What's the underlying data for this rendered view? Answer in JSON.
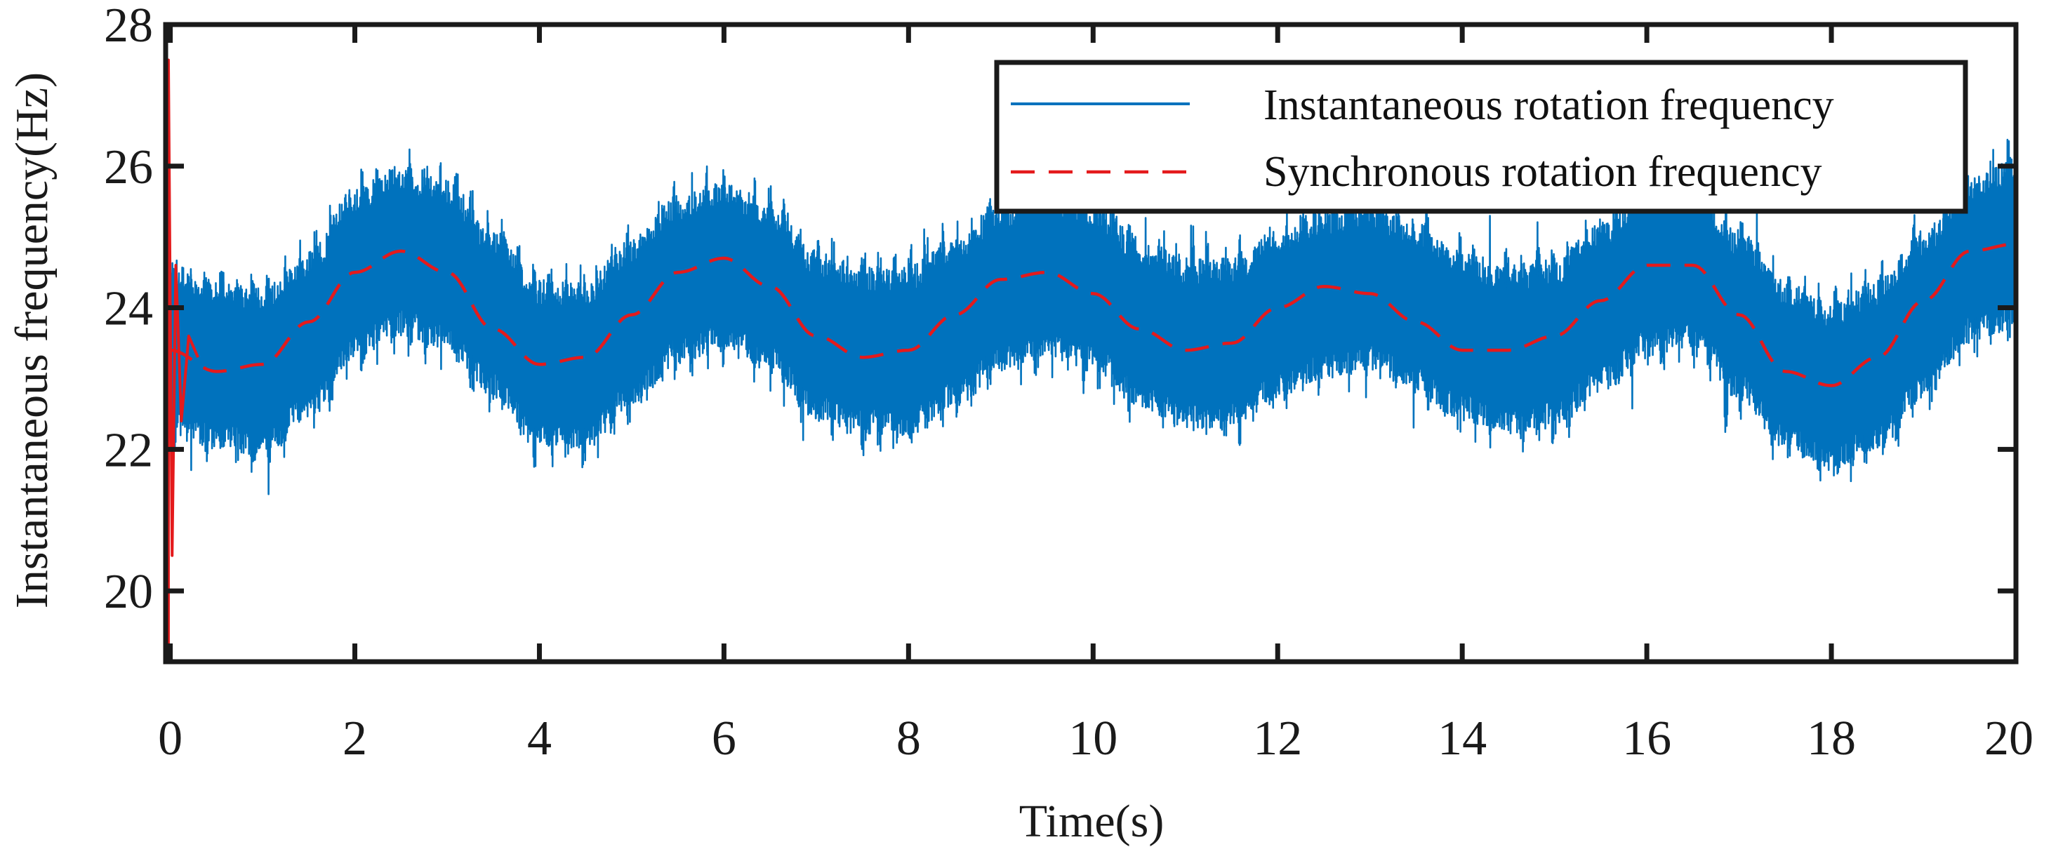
{
  "chart_data": {
    "type": "line",
    "title": "",
    "xlabel": "Time(s)",
    "ylabel": "Instantaneous frequency(Hz)",
    "xlim": [
      -0.05,
      20
    ],
    "ylim": [
      19,
      28
    ],
    "x_ticks": [
      0,
      2,
      4,
      6,
      8,
      10,
      12,
      14,
      16,
      18,
      20
    ],
    "x_tick_labels": [
      "0",
      "2",
      "4",
      "6",
      "8",
      "10",
      "12",
      "14",
      "16",
      "18",
      "20"
    ],
    "y_ticks": [
      20,
      22,
      24,
      26,
      28
    ],
    "y_tick_labels": [
      "20",
      "22",
      "24",
      "26",
      "28"
    ],
    "grid": false,
    "legend_position": "top-right",
    "series": [
      {
        "name": "Instantaneous rotation frequency",
        "style": "solid",
        "color": "#0072BD",
        "band_amplitude": 1.5,
        "x": [
          0,
          0.5,
          1.0,
          1.5,
          2.0,
          2.5,
          3.0,
          3.5,
          4.0,
          4.5,
          5.0,
          5.5,
          6.0,
          6.5,
          7.0,
          7.5,
          8.0,
          8.5,
          9.0,
          9.5,
          10.0,
          10.5,
          11.0,
          11.5,
          12.0,
          12.5,
          13.0,
          13.5,
          14.0,
          14.5,
          15.0,
          15.5,
          16.0,
          16.5,
          17.0,
          17.5,
          18.0,
          18.5,
          19.0,
          19.5,
          20.0
        ],
        "values": [
          23.4,
          23.2,
          23.1,
          23.6,
          24.5,
          24.8,
          24.6,
          23.9,
          23.2,
          23.2,
          23.8,
          24.4,
          24.6,
          24.3,
          23.6,
          23.4,
          23.4,
          23.8,
          24.3,
          24.5,
          24.3,
          23.8,
          23.5,
          23.5,
          23.9,
          24.2,
          24.3,
          24.0,
          23.6,
          23.4,
          23.5,
          24.0,
          24.5,
          24.6,
          23.9,
          23.2,
          22.9,
          23.2,
          23.9,
          24.7,
          24.9
        ]
      },
      {
        "name": "Synchronous rotation frequency",
        "style": "dashed",
        "color": "#E41A1C",
        "x": [
          0,
          0.5,
          1.0,
          1.5,
          2.0,
          2.5,
          3.0,
          3.5,
          4.0,
          4.5,
          5.0,
          5.5,
          6.0,
          6.5,
          7.0,
          7.5,
          8.0,
          8.5,
          9.0,
          9.5,
          10.0,
          10.5,
          11.0,
          11.5,
          12.0,
          12.5,
          13.0,
          13.5,
          14.0,
          14.5,
          15.0,
          15.5,
          16.0,
          16.5,
          17.0,
          17.5,
          18.0,
          18.5,
          19.0,
          19.5,
          20.0
        ],
        "values": [
          23.4,
          23.1,
          23.2,
          23.8,
          24.5,
          24.8,
          24.5,
          23.7,
          23.2,
          23.3,
          23.9,
          24.5,
          24.7,
          24.3,
          23.6,
          23.3,
          23.4,
          23.9,
          24.4,
          24.5,
          24.2,
          23.7,
          23.4,
          23.5,
          24.0,
          24.3,
          24.2,
          23.8,
          23.4,
          23.4,
          23.6,
          24.1,
          24.6,
          24.6,
          23.9,
          23.1,
          22.9,
          23.3,
          24.1,
          24.8,
          24.9
        ]
      }
    ]
  }
}
